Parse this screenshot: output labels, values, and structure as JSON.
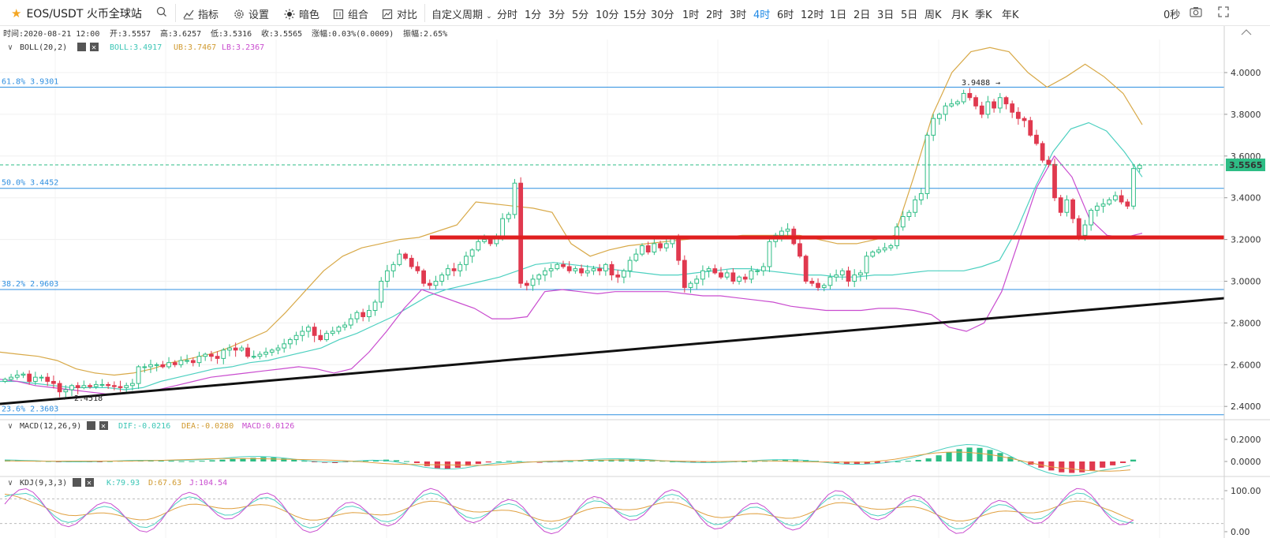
{
  "toolbar": {
    "symbol": "EOS/USDT 火币全球站",
    "buttons": [
      "指标",
      "设置",
      "暗色",
      "组合",
      "对比"
    ],
    "custom_period": "自定义周期",
    "periods": [
      "分时",
      "1分",
      "3分",
      "5分",
      "10分",
      "15分",
      "30分",
      "1时",
      "2时",
      "3时",
      "4时",
      "6时",
      "12时",
      "1日",
      "2日",
      "3日",
      "5日",
      "周K",
      "月K",
      "季K",
      "年K"
    ],
    "active_period": "4时",
    "seconds": "0秒"
  },
  "info_bar": {
    "time": "时间:2020-08-21 12:00",
    "open": "开:3.5557",
    "high": "高:3.6257",
    "low": "低:3.5316",
    "close": "收:3.5565",
    "change": "涨幅:0.03%(0.0009)",
    "amplitude": "振幅:2.65%"
  },
  "boll_legend": {
    "name": "BOLL(20,2)",
    "boll": "BOLL:3.4917",
    "ub": "UB:3.7467",
    "lb": "LB:3.2367"
  },
  "macd_legend": {
    "name": "MACD(12,26,9)",
    "dif": "DIF:-0.0216",
    "dea": "DEA:-0.0280",
    "macd": "MACD:0.0126"
  },
  "kdj_legend": {
    "name": "KDJ(9,3,3)",
    "k": "K:79.93",
    "d": "D:67.63",
    "j": "J:104.54"
  },
  "annotations": {
    "fib_618": "61.8% 3.9301",
    "fib_500": "50.0% 3.4452",
    "fib_382": "38.2% 2.9603",
    "fib_236": "23.6% 2.3603",
    "high_marker": "3.9488",
    "low_marker": "2.4518",
    "last_price": "3.5565"
  },
  "colors": {
    "up": "#2ebd85",
    "down": "#e0394f",
    "boll_mid": "#4dd0c0",
    "boll_ub": "#d8a948",
    "boll_lb": "#c94ccf",
    "fib": "#2f8fe0",
    "support": "#e01f1f",
    "trend": "#111111",
    "dif": "#4dd0c0",
    "dea": "#e0a040",
    "k": "#4dd0c0",
    "d": "#e0a040",
    "j": "#c94ccf"
  },
  "chart_data": [
    {
      "type": "candlestick",
      "y_ticks": [
        "4.0000",
        "3.8000",
        "3.6000",
        "3.4000",
        "3.2000",
        "3.0000",
        "2.8000",
        "2.6000",
        "2.4000"
      ],
      "ylim": [
        2.36,
        4.19
      ],
      "closes": [
        2.53,
        2.54,
        2.55,
        2.555,
        2.52,
        2.54,
        2.54,
        2.52,
        2.51,
        2.47,
        2.48,
        2.5,
        2.49,
        2.5,
        2.495,
        2.505,
        2.505,
        2.5,
        2.495,
        2.49,
        2.5,
        2.51,
        2.59,
        2.59,
        2.6,
        2.6,
        2.59,
        2.61,
        2.6,
        2.62,
        2.62,
        2.61,
        2.64,
        2.65,
        2.64,
        2.63,
        2.67,
        2.68,
        2.67,
        2.68,
        2.64,
        2.64,
        2.65,
        2.66,
        2.67,
        2.68,
        2.7,
        2.72,
        2.74,
        2.76,
        2.78,
        2.74,
        2.72,
        2.75,
        2.76,
        2.78,
        2.79,
        2.82,
        2.85,
        2.83,
        2.86,
        2.9,
        3.0,
        3.05,
        3.08,
        3.13,
        3.11,
        3.07,
        3.05,
        2.99,
        2.98,
        3.0,
        3.03,
        3.06,
        3.05,
        3.08,
        3.12,
        3.15,
        3.19,
        3.2,
        3.18,
        3.21,
        3.3,
        3.32,
        3.47,
        2.99,
        2.98,
        3.01,
        3.03,
        3.05,
        3.06,
        3.08,
        3.07,
        3.05,
        3.06,
        3.04,
        3.05,
        3.06,
        3.05,
        3.08,
        3.03,
        3.02,
        3.05,
        3.1,
        3.13,
        3.17,
        3.14,
        3.18,
        3.16,
        3.18,
        3.21,
        3.1,
        2.97,
        2.99,
        3.01,
        3.05,
        3.06,
        3.04,
        3.02,
        3.04,
        3.0,
        3.02,
        3.01,
        3.05,
        3.05,
        3.07,
        3.19,
        3.22,
        3.24,
        3.25,
        3.18,
        3.12,
        3.0,
        2.99,
        2.97,
        2.98,
        3.02,
        3.03,
        3.05,
        3.0,
        3.03,
        3.04,
        3.12,
        3.14,
        3.15,
        3.16,
        3.17,
        3.26,
        3.31,
        3.33,
        3.39,
        3.42,
        3.7,
        3.78,
        3.8,
        3.84,
        3.85,
        3.86,
        3.9,
        3.88,
        3.84,
        3.8,
        3.86,
        3.83,
        3.88,
        3.85,
        3.81,
        3.78,
        3.77,
        3.7,
        3.66,
        3.58,
        3.56,
        3.4,
        3.33,
        3.39,
        3.3,
        3.22,
        3.27,
        3.34,
        3.36,
        3.37,
        3.39,
        3.41,
        3.38,
        3.36,
        3.54,
        3.556
      ],
      "boll_mid": [
        2.52,
        2.52,
        2.51,
        2.5,
        2.49,
        2.49,
        2.49,
        2.48,
        2.49,
        2.52,
        2.54,
        2.56,
        2.58,
        2.59,
        2.61,
        2.62,
        2.64,
        2.66,
        2.68,
        2.72,
        2.75,
        2.79,
        2.83,
        2.88,
        2.93,
        2.96,
        2.98,
        3.0,
        3.02,
        3.05,
        3.08,
        3.09,
        3.08,
        3.07,
        3.06,
        3.05,
        3.04,
        3.03,
        3.03,
        3.04,
        3.05,
        3.06,
        3.06,
        3.05,
        3.04,
        3.03,
        3.03,
        3.02,
        3.02,
        3.03,
        3.03,
        3.04,
        3.05,
        3.05,
        3.05,
        3.07,
        3.1,
        3.25,
        3.45,
        3.62,
        3.73,
        3.76,
        3.72,
        3.62,
        3.5
      ],
      "boll_ub": [
        2.66,
        2.65,
        2.64,
        2.62,
        2.58,
        2.56,
        2.55,
        2.56,
        2.58,
        2.61,
        2.63,
        2.65,
        2.68,
        2.72,
        2.76,
        2.85,
        2.95,
        3.05,
        3.12,
        3.16,
        3.18,
        3.2,
        3.21,
        3.24,
        3.27,
        3.38,
        3.37,
        3.36,
        3.35,
        3.33,
        3.18,
        3.12,
        3.15,
        3.17,
        3.18,
        3.19,
        3.2,
        3.21,
        3.21,
        3.22,
        3.22,
        3.22,
        3.22,
        3.2,
        3.18,
        3.18,
        3.2,
        3.22,
        3.5,
        3.8,
        4.0,
        4.1,
        4.12,
        4.1,
        4.0,
        3.93,
        3.98,
        4.04,
        3.98,
        3.9,
        3.75
      ],
      "boll_lb": [
        2.53,
        2.52,
        2.5,
        2.49,
        2.48,
        2.47,
        2.46,
        2.46,
        2.47,
        2.48,
        2.5,
        2.52,
        2.54,
        2.55,
        2.56,
        2.57,
        2.58,
        2.59,
        2.58,
        2.56,
        2.58,
        2.66,
        2.76,
        2.87,
        2.96,
        2.93,
        2.9,
        2.87,
        2.82,
        2.82,
        2.83,
        2.95,
        2.96,
        2.95,
        2.94,
        2.95,
        2.95,
        2.95,
        2.95,
        2.94,
        2.93,
        2.93,
        2.92,
        2.91,
        2.9,
        2.88,
        2.87,
        2.86,
        2.86,
        2.86,
        2.87,
        2.87,
        2.86,
        2.84,
        2.78,
        2.76,
        2.8,
        2.95,
        3.2,
        3.45,
        3.6,
        3.5,
        3.3,
        3.22,
        3.21,
        3.23
      ]
    },
    {
      "type": "bar",
      "name": "MACD",
      "y_ticks": [
        "0.2000",
        "0.0000"
      ],
      "ylim": [
        -0.09,
        0.27
      ],
      "macd_hist": [
        0.008,
        0.008,
        0.006,
        0.004,
        0.002,
        -0.002,
        -0.004,
        -0.004,
        -0.003,
        -0.002,
        0.002,
        0.004,
        0.005,
        0.006,
        0.007,
        0.006,
        0.004,
        0.002,
        0.002,
        0.004,
        0.008,
        0.012,
        0.016,
        0.02,
        0.024,
        0.028,
        0.026,
        0.02,
        0.012,
        0.004,
        -0.004,
        -0.008,
        -0.01,
        -0.004,
        0.002,
        0.006,
        0.01,
        0.012,
        0.008,
        0.002,
        -0.01,
        -0.03,
        -0.045,
        -0.048,
        -0.04,
        -0.028,
        -0.016,
        -0.006,
        0.0,
        0.004,
        0.002,
        -0.004,
        -0.008,
        -0.006,
        -0.002,
        0.002,
        0.006,
        0.008,
        0.01,
        0.012,
        0.014,
        0.016,
        0.012,
        0.008,
        0.004,
        0.0,
        -0.004,
        -0.008,
        -0.008,
        -0.006,
        -0.004,
        -0.002,
        0.0,
        0.002,
        0.004,
        0.008,
        0.012,
        0.014,
        0.01,
        0.004,
        -0.002,
        -0.01,
        -0.018,
        -0.02,
        -0.016,
        -0.01,
        -0.004,
        0.0,
        0.004,
        0.01,
        0.02,
        0.04,
        0.06,
        0.08,
        0.09,
        0.088,
        0.075,
        0.055,
        0.03,
        0.005,
        -0.02,
        -0.04,
        -0.058,
        -0.07,
        -0.074,
        -0.07,
        -0.058,
        -0.04,
        -0.025,
        -0.01,
        0.012
      ]
    },
    {
      "type": "line",
      "name": "KDJ",
      "y_ticks": [
        "100.00",
        "0.00"
      ],
      "ylim": [
        -8,
        118
      ]
    }
  ]
}
